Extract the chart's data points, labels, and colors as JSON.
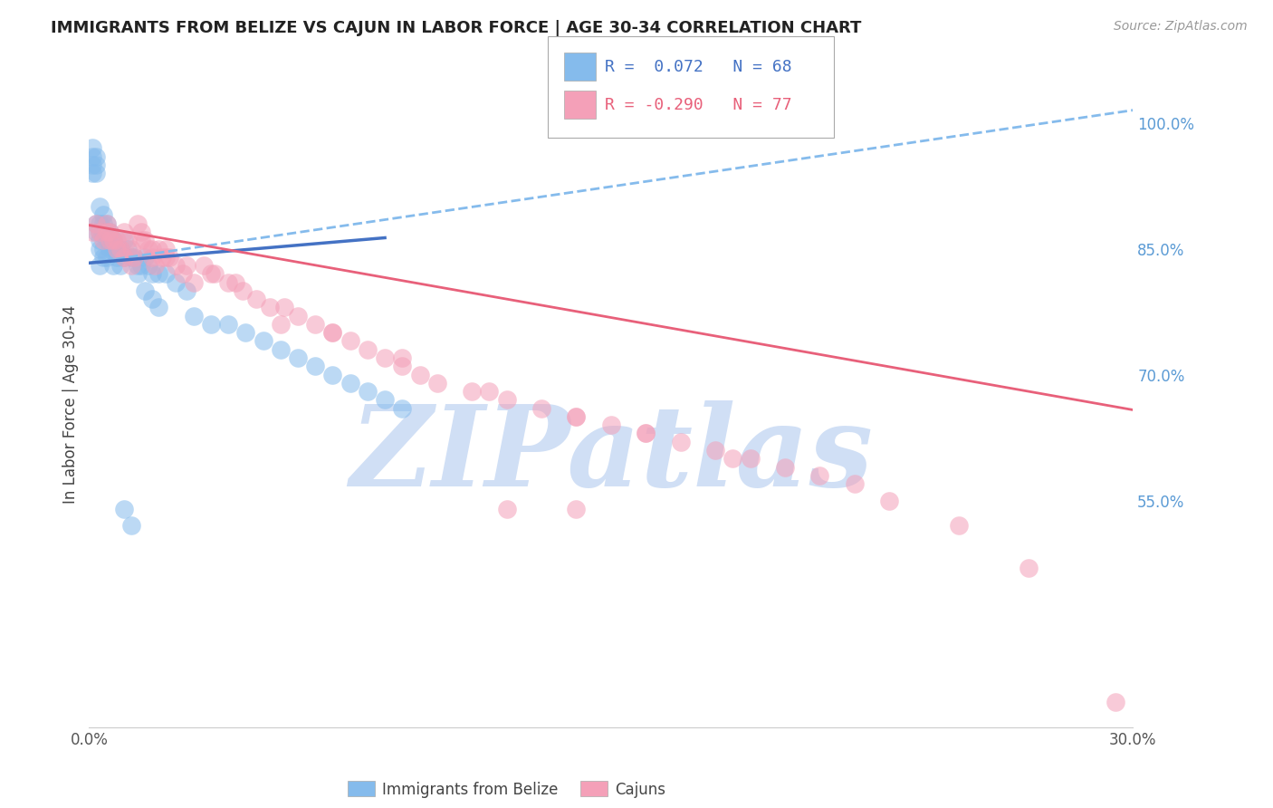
{
  "title": "IMMIGRANTS FROM BELIZE VS CAJUN IN LABOR FORCE | AGE 30-34 CORRELATION CHART",
  "source": "Source: ZipAtlas.com",
  "ylabel": "In Labor Force | Age 30-34",
  "x_min": 0.0,
  "x_max": 0.3,
  "y_min": 0.28,
  "y_max": 1.05,
  "right_yticks": [
    0.55,
    0.7,
    0.85,
    1.0
  ],
  "right_yticklabels": [
    "55.0%",
    "70.0%",
    "85.0%",
    "100.0%"
  ],
  "x_ticks": [
    0.0,
    0.05,
    0.1,
    0.15,
    0.2,
    0.25,
    0.3
  ],
  "x_ticklabels": [
    "0.0%",
    "",
    "",
    "",
    "",
    "",
    "30.0%"
  ],
  "belize_R": 0.072,
  "belize_N": 68,
  "cajun_R": -0.29,
  "cajun_N": 77,
  "belize_color": "#85BBEC",
  "cajun_color": "#F4A0B8",
  "belize_line_color": "#4472C4",
  "cajun_line_color": "#E8607A",
  "dashed_line_color": "#85BBEC",
  "watermark_color": "#D0DFF5",
  "belize_scatter_x": [
    0.001,
    0.001,
    0.001,
    0.001,
    0.002,
    0.002,
    0.002,
    0.002,
    0.002,
    0.003,
    0.003,
    0.003,
    0.003,
    0.003,
    0.003,
    0.004,
    0.004,
    0.004,
    0.004,
    0.004,
    0.005,
    0.005,
    0.005,
    0.005,
    0.006,
    0.006,
    0.006,
    0.007,
    0.007,
    0.007,
    0.008,
    0.008,
    0.009,
    0.009,
    0.01,
    0.01,
    0.011,
    0.012,
    0.013,
    0.014,
    0.015,
    0.016,
    0.017,
    0.018,
    0.02,
    0.022,
    0.025,
    0.028,
    0.03,
    0.035,
    0.04,
    0.045,
    0.05,
    0.055,
    0.06,
    0.065,
    0.07,
    0.075,
    0.08,
    0.085,
    0.09,
    0.01,
    0.012,
    0.014,
    0.016,
    0.018,
    0.02
  ],
  "belize_scatter_y": [
    0.97,
    0.96,
    0.95,
    0.94,
    0.96,
    0.95,
    0.94,
    0.88,
    0.87,
    0.9,
    0.88,
    0.87,
    0.86,
    0.85,
    0.83,
    0.89,
    0.88,
    0.87,
    0.85,
    0.84,
    0.88,
    0.87,
    0.86,
    0.84,
    0.87,
    0.86,
    0.85,
    0.86,
    0.85,
    0.83,
    0.85,
    0.84,
    0.85,
    0.83,
    0.86,
    0.84,
    0.85,
    0.84,
    0.84,
    0.83,
    0.83,
    0.84,
    0.83,
    0.82,
    0.82,
    0.82,
    0.81,
    0.8,
    0.77,
    0.76,
    0.76,
    0.75,
    0.74,
    0.73,
    0.72,
    0.71,
    0.7,
    0.69,
    0.68,
    0.67,
    0.66,
    0.54,
    0.52,
    0.82,
    0.8,
    0.79,
    0.78
  ],
  "cajun_scatter_x": [
    0.001,
    0.002,
    0.003,
    0.004,
    0.005,
    0.005,
    0.006,
    0.007,
    0.008,
    0.009,
    0.01,
    0.011,
    0.012,
    0.013,
    0.014,
    0.015,
    0.016,
    0.017,
    0.018,
    0.019,
    0.02,
    0.021,
    0.022,
    0.023,
    0.025,
    0.027,
    0.03,
    0.033,
    0.036,
    0.04,
    0.044,
    0.048,
    0.052,
    0.056,
    0.06,
    0.065,
    0.07,
    0.075,
    0.08,
    0.085,
    0.09,
    0.095,
    0.1,
    0.11,
    0.12,
    0.13,
    0.14,
    0.15,
    0.16,
    0.17,
    0.18,
    0.19,
    0.2,
    0.21,
    0.22,
    0.006,
    0.008,
    0.01,
    0.012,
    0.015,
    0.018,
    0.022,
    0.028,
    0.035,
    0.042,
    0.055,
    0.07,
    0.09,
    0.115,
    0.14,
    0.16,
    0.185,
    0.295,
    0.27,
    0.25,
    0.23,
    0.12,
    0.14
  ],
  "cajun_scatter_y": [
    0.87,
    0.88,
    0.87,
    0.86,
    0.88,
    0.87,
    0.87,
    0.86,
    0.86,
    0.85,
    0.87,
    0.86,
    0.85,
    0.84,
    0.88,
    0.87,
    0.86,
    0.85,
    0.84,
    0.83,
    0.85,
    0.84,
    0.85,
    0.84,
    0.83,
    0.82,
    0.81,
    0.83,
    0.82,
    0.81,
    0.8,
    0.79,
    0.78,
    0.78,
    0.77,
    0.76,
    0.75,
    0.74,
    0.73,
    0.72,
    0.71,
    0.7,
    0.69,
    0.68,
    0.67,
    0.66,
    0.65,
    0.64,
    0.63,
    0.62,
    0.61,
    0.6,
    0.59,
    0.58,
    0.57,
    0.86,
    0.85,
    0.84,
    0.83,
    0.86,
    0.85,
    0.84,
    0.83,
    0.82,
    0.81,
    0.76,
    0.75,
    0.72,
    0.68,
    0.65,
    0.63,
    0.6,
    0.31,
    0.47,
    0.52,
    0.55,
    0.54,
    0.54
  ],
  "belize_line_x": [
    0.0,
    0.085
  ],
  "belize_line_y": [
    0.833,
    0.863
  ],
  "cajun_line_x": [
    0.0,
    0.3
  ],
  "cajun_line_y": [
    0.878,
    0.658
  ],
  "dashed_line_x": [
    0.0,
    0.3
  ],
  "dashed_line_y": [
    0.833,
    1.015
  ]
}
